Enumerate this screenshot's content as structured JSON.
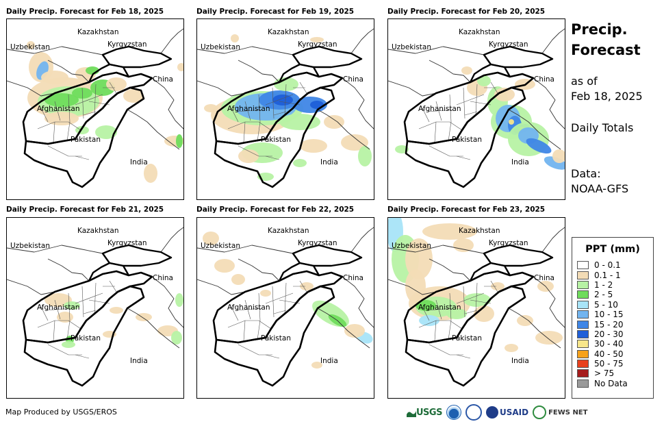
{
  "panels": [
    {
      "title": "Daily Precip. Forecast for Feb 18, 2025",
      "pattern": "d18"
    },
    {
      "title": "Daily Precip. Forecast for Feb 19, 2025",
      "pattern": "d19"
    },
    {
      "title": "Daily Precip. Forecast for Feb 20, 2025",
      "pattern": "d20"
    },
    {
      "title": "Daily Precip. Forecast for Feb 21, 2025",
      "pattern": "d21"
    },
    {
      "title": "Daily Precip. Forecast for Feb 22, 2025",
      "pattern": "d22"
    },
    {
      "title": "Daily Precip. Forecast for Feb 23, 2025",
      "pattern": "d23"
    }
  ],
  "map_labels": {
    "kazakhstan": "Kazakhstan",
    "uzbekistan": "Uzbekistan",
    "kyrgyzstan": "Kyrgyzstan",
    "china": "China",
    "afghanistan": "Afghanistan",
    "pakistan": "Pakistan",
    "india": "India"
  },
  "side": {
    "title_line1": "Precip.",
    "title_line2": "Forecast",
    "asof_line1": "as of",
    "asof_line2": "Feb 18, 2025",
    "totals": "Daily Totals",
    "data_line1": "Data:",
    "data_line2": "NOAA-GFS"
  },
  "legend": {
    "title": "PPT (mm)",
    "items": [
      {
        "label": "0 - 0.1",
        "color": "#ffffff"
      },
      {
        "label": "0.1 - 1",
        "color": "#f3dcb6"
      },
      {
        "label": "1 - 2",
        "color": "#b7f2a4"
      },
      {
        "label": "2 - 5",
        "color": "#6fdc5c"
      },
      {
        "label": "5 - 10",
        "color": "#a8e4f8"
      },
      {
        "label": "10 - 15",
        "color": "#72b4ef"
      },
      {
        "label": "15 - 20",
        "color": "#3f86e6"
      },
      {
        "label": "20 - 30",
        "color": "#1f5fd8"
      },
      {
        "label": "30 - 40",
        "color": "#f8e68a"
      },
      {
        "label": "40 - 50",
        "color": "#f7a21b"
      },
      {
        "label": "50 - 75",
        "color": "#e8401c"
      },
      {
        "label": "> 75",
        "color": "#a61c1c"
      },
      {
        "label": "No Data",
        "color": "#9a9a9a"
      }
    ]
  },
  "footer": {
    "credit": "Map Produced by USGS/EROS",
    "logos": [
      "USGS",
      "NOAA",
      "USAID",
      "FEWS NET"
    ]
  }
}
